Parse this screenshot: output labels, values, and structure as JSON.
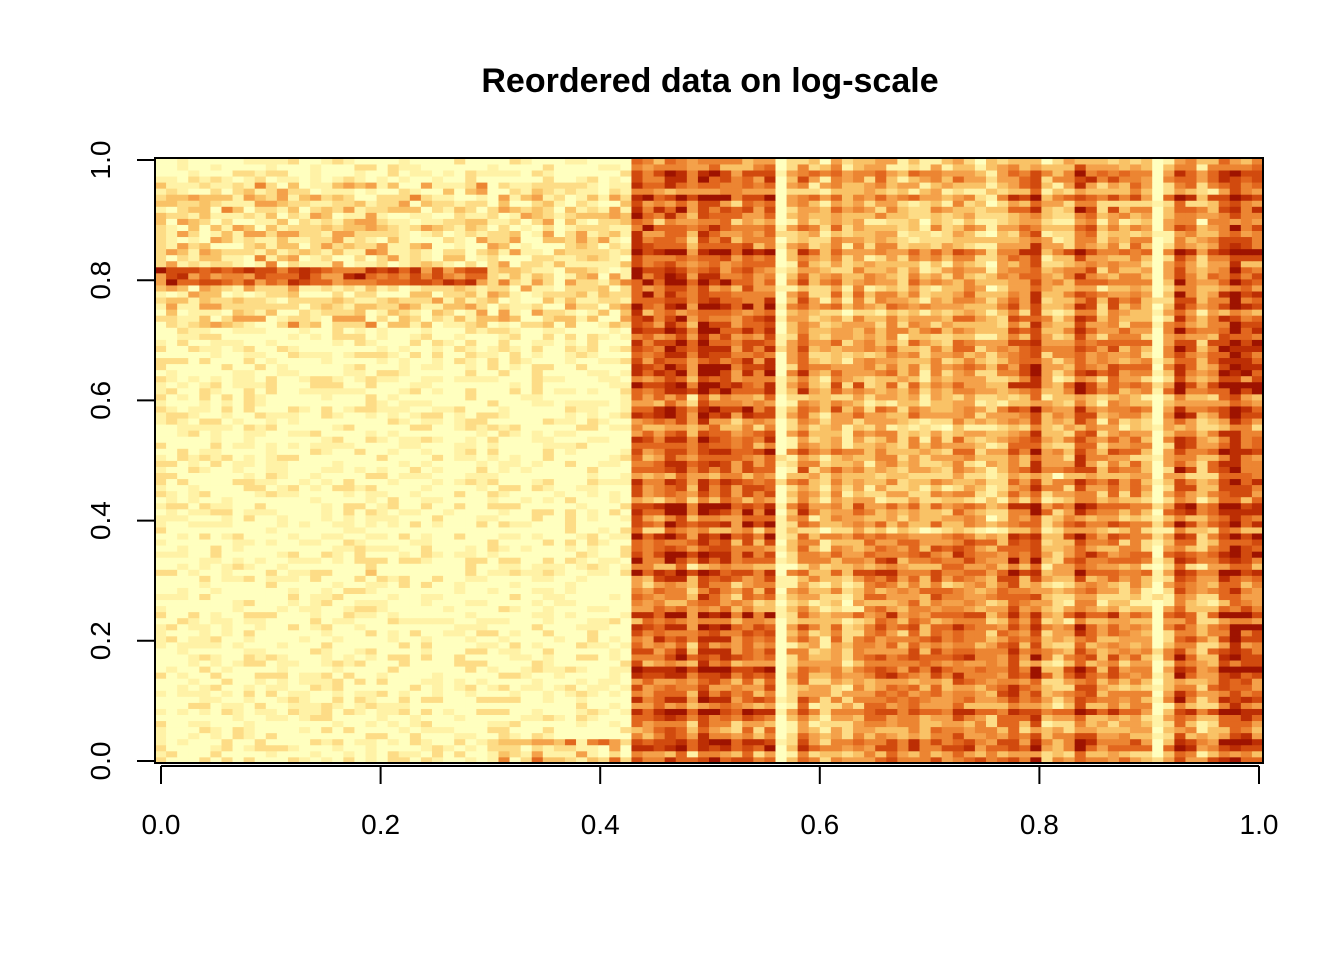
{
  "chart_data": {
    "type": "heatmap",
    "title": "Reordered data on log-scale",
    "xlabel": "",
    "ylabel": "",
    "xlim": [
      0,
      1
    ],
    "ylim": [
      0,
      1
    ],
    "x_ticks": [
      "0.0",
      "0.2",
      "0.4",
      "0.6",
      "0.8",
      "1.0"
    ],
    "y_ticks": [
      "0.0",
      "0.2",
      "0.4",
      "0.6",
      "0.8",
      "1.0"
    ],
    "n_cols": 100,
    "n_rows": 100,
    "color_scale": "heat",
    "colors": [
      "#FFFFBF",
      "#FFF2A6",
      "#FDDC86",
      "#F9C266",
      "#F4A14A",
      "#EC8532",
      "#E2671E",
      "#D14A0E",
      "#BC2E04",
      "#9E1300"
    ],
    "grid": false,
    "legend": "none",
    "column_profile": [
      {
        "from": 0.0,
        "to": 0.43,
        "level": "low",
        "note": "mostly pale; horizontal bands near y 0.72-0.95"
      },
      {
        "from": 0.43,
        "to": 0.56,
        "level": "high"
      },
      {
        "from": 0.56,
        "to": 0.76,
        "level": "medium"
      },
      {
        "from": 0.76,
        "to": 0.96,
        "level": "medium-high"
      },
      {
        "from": 0.96,
        "to": 1.0,
        "level": "very high"
      }
    ]
  }
}
